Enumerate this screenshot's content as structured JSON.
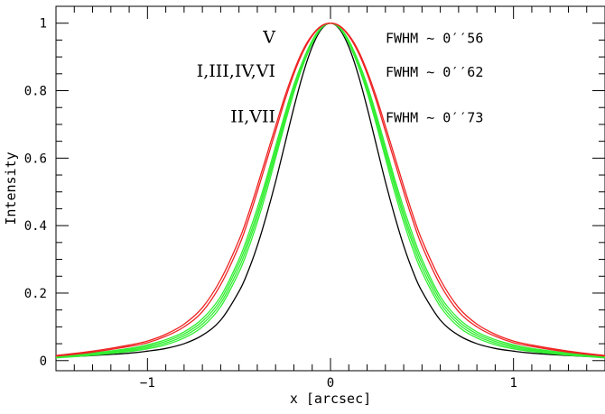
{
  "chart_data": {
    "type": "line",
    "xlabel": "x [arcsec]",
    "ylabel": "Intensity",
    "xlim": [
      -1.5,
      1.5
    ],
    "ylim": [
      -0.03,
      1.05
    ],
    "x_ticks": [
      {
        "value": -1,
        "label": "−1"
      },
      {
        "value": 0,
        "label": "0"
      },
      {
        "value": 1,
        "label": "1"
      }
    ],
    "y_ticks": [
      {
        "value": 0,
        "label": "0"
      },
      {
        "value": 0.2,
        "label": "0.2"
      },
      {
        "value": 0.4,
        "label": "0.4"
      },
      {
        "value": 0.6,
        "label": "0.6"
      },
      {
        "value": 0.8,
        "label": "0.8"
      },
      {
        "value": 1,
        "label": "1"
      }
    ],
    "x": [
      -1.5,
      -1.3,
      -1.1,
      -1.0,
      -0.9,
      -0.8,
      -0.7,
      -0.6,
      -0.5,
      -0.45,
      -0.4,
      -0.35,
      -0.3,
      -0.25,
      -0.2,
      -0.15,
      -0.1,
      -0.05,
      0,
      0.05,
      0.1,
      0.15,
      0.2,
      0.25,
      0.3,
      0.35,
      0.4,
      0.45,
      0.5,
      0.6,
      0.7,
      0.8,
      0.9,
      1.0,
      1.1,
      1.3,
      1.5
    ],
    "series": [
      {
        "color": "#000000",
        "values": [
          0.01,
          0.015,
          0.022,
          0.028,
          0.036,
          0.05,
          0.075,
          0.12,
          0.205,
          0.265,
          0.34,
          0.43,
          0.53,
          0.64,
          0.75,
          0.85,
          0.93,
          0.982,
          1.0,
          0.982,
          0.93,
          0.85,
          0.75,
          0.64,
          0.53,
          0.43,
          0.34,
          0.265,
          0.205,
          0.12,
          0.075,
          0.05,
          0.036,
          0.028,
          0.022,
          0.015,
          0.01
        ]
      },
      {
        "color": "#33ee33",
        "values": [
          0.008,
          0.016,
          0.027,
          0.035,
          0.047,
          0.067,
          0.1,
          0.16,
          0.262,
          0.33,
          0.41,
          0.5,
          0.6,
          0.7,
          0.795,
          0.875,
          0.94,
          0.985,
          1.0,
          0.985,
          0.94,
          0.875,
          0.795,
          0.7,
          0.6,
          0.5,
          0.41,
          0.33,
          0.262,
          0.16,
          0.1,
          0.067,
          0.047,
          0.035,
          0.027,
          0.016,
          0.008
        ]
      },
      {
        "color": "#33ee33",
        "values": [
          0.009,
          0.018,
          0.03,
          0.039,
          0.052,
          0.073,
          0.108,
          0.17,
          0.275,
          0.345,
          0.425,
          0.515,
          0.612,
          0.71,
          0.803,
          0.88,
          0.943,
          0.986,
          1.0,
          0.986,
          0.943,
          0.88,
          0.803,
          0.71,
          0.612,
          0.515,
          0.425,
          0.345,
          0.275,
          0.17,
          0.108,
          0.073,
          0.052,
          0.039,
          0.03,
          0.018,
          0.009
        ]
      },
      {
        "color": "#33ee33",
        "values": [
          0.01,
          0.02,
          0.033,
          0.043,
          0.057,
          0.079,
          0.116,
          0.18,
          0.288,
          0.358,
          0.438,
          0.528,
          0.624,
          0.72,
          0.81,
          0.885,
          0.946,
          0.987,
          1.0,
          0.987,
          0.946,
          0.885,
          0.81,
          0.72,
          0.624,
          0.528,
          0.438,
          0.358,
          0.288,
          0.18,
          0.116,
          0.079,
          0.057,
          0.043,
          0.033,
          0.02,
          0.01
        ]
      },
      {
        "color": "#33ee33",
        "values": [
          0.011,
          0.022,
          0.036,
          0.047,
          0.062,
          0.085,
          0.124,
          0.19,
          0.3,
          0.372,
          0.452,
          0.54,
          0.636,
          0.73,
          0.818,
          0.89,
          0.949,
          0.988,
          1.0,
          0.988,
          0.949,
          0.89,
          0.818,
          0.73,
          0.636,
          0.54,
          0.452,
          0.372,
          0.3,
          0.19,
          0.124,
          0.085,
          0.062,
          0.047,
          0.036,
          0.022,
          0.011
        ]
      },
      {
        "color": "#ee2222",
        "values": [
          0.013,
          0.025,
          0.042,
          0.053,
          0.072,
          0.1,
          0.145,
          0.225,
          0.34,
          0.415,
          0.5,
          0.59,
          0.68,
          0.77,
          0.85,
          0.915,
          0.962,
          0.991,
          1.0,
          0.991,
          0.962,
          0.915,
          0.85,
          0.77,
          0.68,
          0.59,
          0.5,
          0.415,
          0.34,
          0.225,
          0.145,
          0.1,
          0.072,
          0.053,
          0.042,
          0.025,
          0.013
        ]
      },
      {
        "color": "#ee2222",
        "values": [
          0.015,
          0.028,
          0.046,
          0.058,
          0.078,
          0.108,
          0.157,
          0.24,
          0.357,
          0.432,
          0.517,
          0.606,
          0.695,
          0.782,
          0.858,
          0.921,
          0.965,
          0.992,
          1.0,
          0.992,
          0.965,
          0.921,
          0.858,
          0.782,
          0.695,
          0.606,
          0.517,
          0.432,
          0.357,
          0.24,
          0.157,
          0.108,
          0.078,
          0.058,
          0.046,
          0.028,
          0.015
        ]
      }
    ],
    "annotations": [
      {
        "text": "V",
        "fwhm": "FWHM ∼ 0′′56",
        "y": 0.96
      },
      {
        "text": "I,III,IV,VI",
        "fwhm": "FWHM ∼ 0′′62",
        "y": 0.86
      },
      {
        "text": "II,VII",
        "fwhm": "FWHM ∼ 0′′73",
        "y": 0.725
      }
    ],
    "grid": false,
    "legend": "none"
  }
}
